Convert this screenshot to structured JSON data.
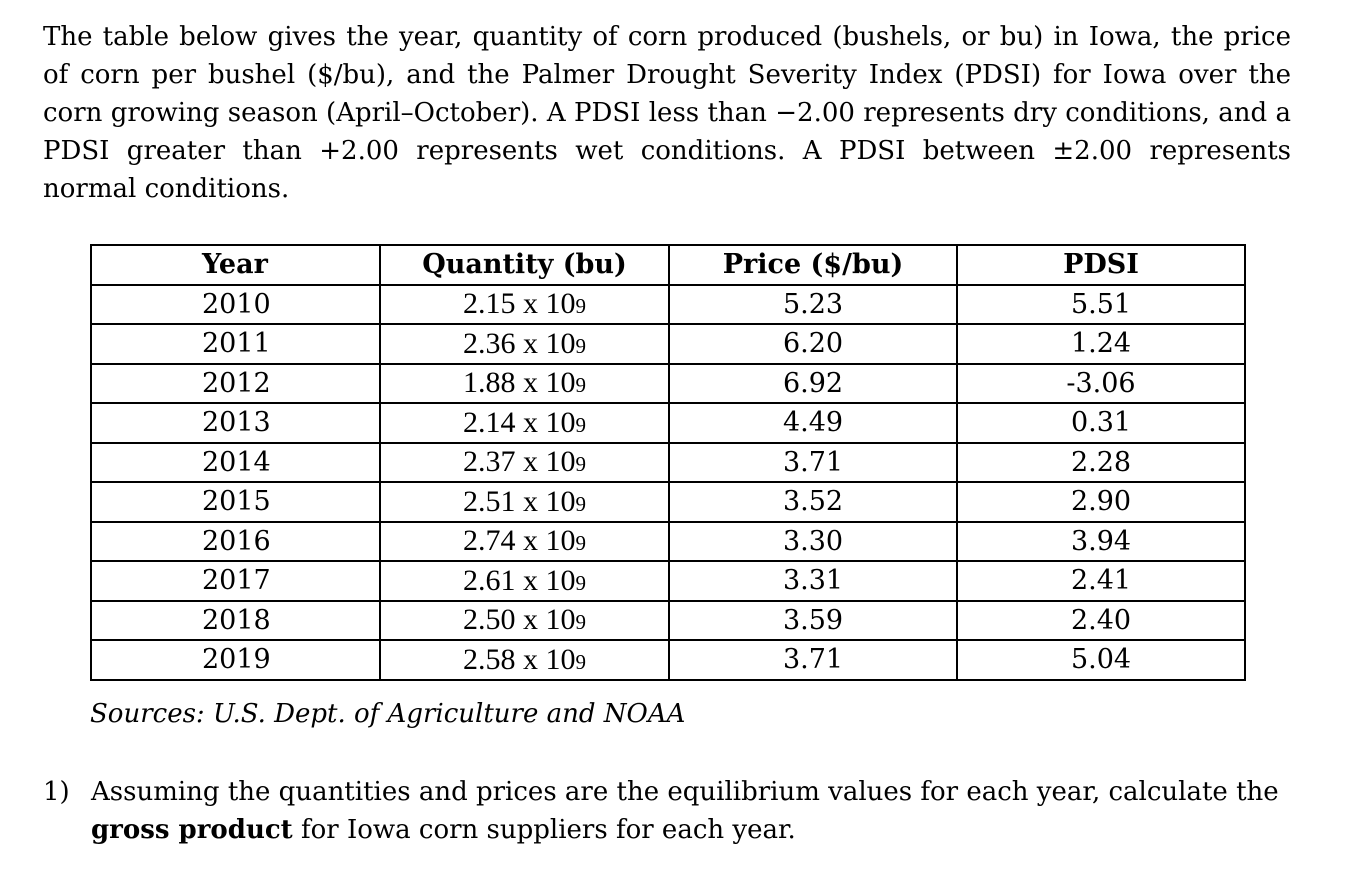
{
  "intro": "The table below gives the year, quantity of corn produced (bushels, or bu) in Iowa, the price of corn per bushel ($/bu), and the Palmer Drought Severity Index (PDSI) for Iowa over the corn growing season (April–October). A PDSI less than −2.00 represents dry conditions, and a PDSI greater than +2.00 represents wet conditions. A PDSI between ±2.00 represents normal conditions.",
  "table": {
    "headers": {
      "year": "Year",
      "quantity": "Quantity (bu)",
      "price": "Price ($/bu)",
      "pdsi": "PDSI"
    },
    "rows": [
      {
        "year": "2010",
        "qty": "2.15 x 10",
        "exp": "9",
        "price": "5.23",
        "pdsi": "5.51"
      },
      {
        "year": "2011",
        "qty": "2.36 x 10",
        "exp": "9",
        "price": "6.20",
        "pdsi": "1.24"
      },
      {
        "year": "2012",
        "qty": "1.88 x 10",
        "exp": "9",
        "price": "6.92",
        "pdsi": "-3.06"
      },
      {
        "year": "2013",
        "qty": "2.14 x 10",
        "exp": "9",
        "price": "4.49",
        "pdsi": "0.31"
      },
      {
        "year": "2014",
        "qty": "2.37 x 10",
        "exp": "9",
        "price": "3.71",
        "pdsi": "2.28"
      },
      {
        "year": "2015",
        "qty": "2.51 x 10",
        "exp": "9",
        "price": "3.52",
        "pdsi": "2.90"
      },
      {
        "year": "2016",
        "qty": "2.74 x 10",
        "exp": "9",
        "price": "3.30",
        "pdsi": "3.94"
      },
      {
        "year": "2017",
        "qty": "2.61 x 10",
        "exp": "9",
        "price": "3.31",
        "pdsi": "2.41"
      },
      {
        "year": "2018",
        "qty": "2.50 x 10",
        "exp": "9",
        "price": "3.59",
        "pdsi": "2.40"
      },
      {
        "year": "2019",
        "qty": "2.58 x 10",
        "exp": "9",
        "price": "3.71",
        "pdsi": "5.04"
      }
    ]
  },
  "sources": "Sources: U.S. Dept. of Agriculture and NOAA",
  "question": {
    "number": "1)",
    "text_before": "Assuming the quantities and prices are the equilibrium values for each year, calculate the ",
    "bold": "gross product",
    "text_after": " for Iowa corn suppliers for each year."
  }
}
